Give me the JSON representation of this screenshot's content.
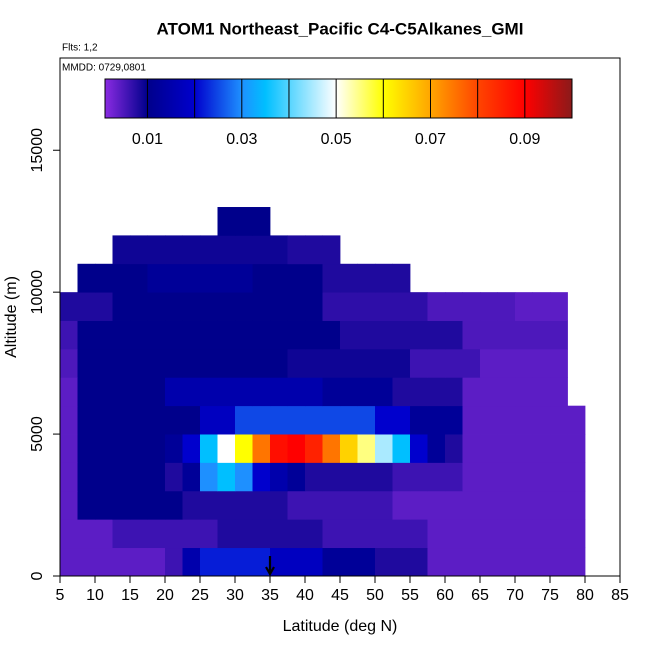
{
  "chart_data": {
    "type": "heatmap",
    "title": "ATOM1 Northeast_Pacific C4-C5Alkanes_GMI",
    "subtitle": "Flts: 1,2",
    "annotation": "MMDD: 0729,0801",
    "x_label": "Latitude (deg N)",
    "y_label": "Altitude (m)",
    "xlim": [
      5,
      85
    ],
    "xticks": [
      5,
      10,
      15,
      20,
      25,
      30,
      35,
      40,
      45,
      50,
      55,
      60,
      65,
      70,
      75,
      80,
      85
    ],
    "ylim": [
      0,
      18250
    ],
    "yticks": [
      0,
      5000,
      10000,
      15000
    ],
    "x_edges": [
      5,
      7.5,
      10,
      12.5,
      15,
      17.5,
      20,
      22.5,
      25,
      27.5,
      30,
      32.5,
      35,
      37.5,
      40,
      42.5,
      45,
      47.5,
      50,
      52.5,
      55,
      57.5,
      60,
      62.5,
      65,
      67.5,
      70,
      72.5,
      75,
      77.5,
      80
    ],
    "y_edges": [
      0,
      1000,
      2000,
      3000,
      4000,
      5000,
      6000,
      7000,
      8000,
      9000,
      10000,
      11000,
      12000,
      13000
    ],
    "z": [
      [
        0.004,
        0.004,
        0.004,
        0.004,
        0.004,
        0.004,
        0.006,
        0.015,
        0.022,
        0.022,
        0.022,
        0.022,
        0.018,
        0.018,
        0.018,
        0.012,
        0.012,
        0.012,
        0.008,
        0.008,
        0.008,
        0.004,
        0.004,
        0.004,
        0.004,
        0.004,
        0.004,
        0.004,
        0.004,
        0.004
      ],
      [
        0.004,
        0.004,
        0.004,
        0.006,
        0.006,
        0.006,
        0.006,
        0.006,
        0.006,
        0.008,
        0.008,
        0.008,
        0.008,
        0.008,
        0.008,
        0.006,
        0.006,
        0.006,
        0.006,
        0.006,
        0.006,
        0.004,
        0.004,
        0.004,
        0.004,
        0.004,
        0.004,
        0.004,
        0.004,
        0.004
      ],
      [
        0.004,
        0.01,
        0.01,
        0.01,
        0.01,
        0.01,
        0.01,
        0.008,
        0.008,
        0.008,
        0.008,
        0.008,
        0.008,
        0.006,
        0.006,
        0.006,
        0.006,
        0.006,
        0.006,
        0.004,
        0.004,
        0.004,
        0.004,
        0.004,
        0.004,
        0.004,
        0.004,
        0.004,
        0.004,
        0.004
      ],
      [
        0.004,
        0.01,
        0.01,
        0.01,
        0.01,
        0.01,
        0.008,
        0.012,
        0.03,
        0.035,
        0.03,
        0.02,
        0.015,
        0.012,
        0.008,
        0.008,
        0.008,
        0.008,
        0.008,
        0.006,
        0.006,
        0.006,
        0.006,
        0.004,
        0.004,
        0.004,
        0.004,
        0.004,
        0.004,
        0.004
      ],
      [
        0.004,
        0.01,
        0.01,
        0.01,
        0.01,
        0.01,
        0.012,
        0.02,
        0.035,
        0.05,
        0.06,
        0.075,
        0.088,
        0.09,
        0.085,
        0.075,
        0.065,
        0.055,
        0.045,
        0.035,
        0.02,
        0.012,
        0.008,
        0.004,
        0.004,
        0.004,
        0.004,
        0.004,
        0.004,
        0.004
      ],
      [
        0.004,
        0.01,
        0.01,
        0.01,
        0.01,
        0.01,
        0.01,
        0.01,
        0.018,
        0.018,
        0.025,
        0.025,
        0.025,
        0.025,
        0.025,
        0.025,
        0.025,
        0.025,
        0.02,
        0.02,
        0.012,
        0.012,
        0.012,
        0.004,
        0.004,
        0.004,
        0.004,
        0.004,
        0.004,
        0.004
      ],
      [
        0.004,
        0.01,
        0.01,
        0.01,
        0.01,
        0.01,
        0.015,
        0.015,
        0.015,
        0.015,
        0.015,
        0.015,
        0.015,
        0.015,
        0.015,
        0.012,
        0.012,
        0.012,
        0.012,
        0.008,
        0.008,
        0.008,
        0.008,
        0.004,
        0.004,
        0.004,
        0.004,
        0.004,
        0.004,
        null
      ],
      [
        0.005,
        0.01,
        0.01,
        0.01,
        0.01,
        0.01,
        0.01,
        0.01,
        0.01,
        0.01,
        0.01,
        0.01,
        0.01,
        0.009,
        0.009,
        0.009,
        0.009,
        0.009,
        0.009,
        0.009,
        0.006,
        0.006,
        0.006,
        0.006,
        0.004,
        0.004,
        0.004,
        0.004,
        0.004,
        null
      ],
      [
        0.006,
        0.01,
        0.01,
        0.01,
        0.01,
        0.01,
        0.01,
        0.01,
        0.01,
        0.01,
        0.01,
        0.01,
        0.01,
        0.01,
        0.01,
        0.01,
        0.008,
        0.008,
        0.008,
        0.008,
        0.008,
        0.008,
        0.008,
        0.005,
        0.005,
        0.005,
        0.005,
        0.005,
        0.005,
        null
      ],
      [
        0.008,
        0.008,
        0.008,
        0.01,
        0.01,
        0.01,
        0.01,
        0.01,
        0.01,
        0.01,
        0.01,
        0.01,
        0.01,
        0.01,
        0.01,
        0.007,
        0.007,
        0.007,
        0.007,
        0.007,
        0.007,
        0.005,
        0.005,
        0.005,
        0.005,
        0.005,
        0.004,
        0.004,
        0.004,
        null
      ],
      [
        null,
        0.01,
        0.01,
        0.01,
        0.01,
        0.012,
        0.012,
        0.012,
        0.012,
        0.012,
        0.012,
        0.01,
        0.01,
        0.01,
        0.01,
        0.008,
        0.008,
        0.008,
        0.008,
        0.008,
        null,
        null,
        null,
        null,
        null,
        null,
        null,
        null,
        null,
        null
      ],
      [
        null,
        null,
        null,
        0.009,
        0.009,
        0.009,
        0.009,
        0.009,
        0.009,
        0.009,
        0.009,
        0.009,
        0.009,
        0.008,
        0.008,
        0.008,
        null,
        null,
        null,
        null,
        null,
        null,
        null,
        null,
        null,
        null,
        null,
        null,
        null,
        null
      ],
      [
        null,
        null,
        null,
        null,
        null,
        null,
        null,
        null,
        null,
        0.01,
        0.01,
        0.01,
        null,
        null,
        null,
        null,
        null,
        null,
        null,
        null,
        null,
        null,
        null,
        null,
        null,
        null,
        null,
        null,
        null,
        null
      ]
    ],
    "zlim": [
      0.001,
      0.1
    ],
    "colorscale": [
      [
        0.001,
        "#8a2be2"
      ],
      [
        0.01,
        "#00008b"
      ],
      [
        0.02,
        "#0000cd"
      ],
      [
        0.03,
        "#1e90ff"
      ],
      [
        0.035,
        "#00bfff"
      ],
      [
        0.05,
        "#ffffff"
      ],
      [
        0.06,
        "#ffff00"
      ],
      [
        0.07,
        "#ffa500"
      ],
      [
        0.08,
        "#ff4500"
      ],
      [
        0.09,
        "#ff0000"
      ],
      [
        0.1,
        "#8b1a1a"
      ]
    ],
    "colorbar_ticks": [
      0.01,
      0.03,
      0.05,
      0.07,
      0.09
    ],
    "colorbar_lines": [
      0.01,
      0.02,
      0.03,
      0.04,
      0.05,
      0.06,
      0.07,
      0.08,
      0.09
    ],
    "arrow_x": 35
  }
}
